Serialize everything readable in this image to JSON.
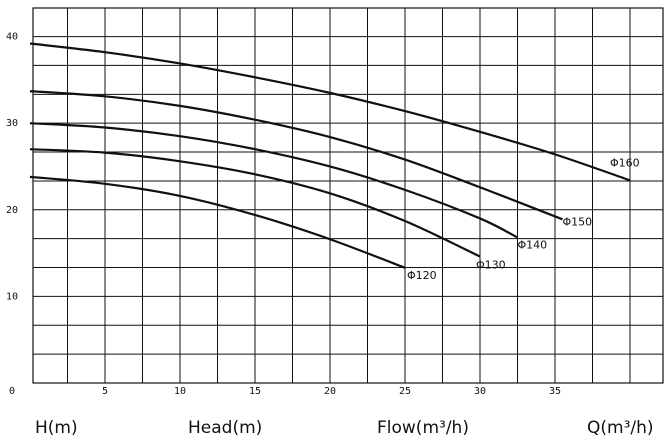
{
  "chart_data": {
    "type": "line",
    "footer_labels": [
      "H(m)",
      "Head(m)",
      "Flow(m³/h)",
      "Q(m³/h)"
    ],
    "xlim": [
      0,
      42.2
    ],
    "ylim": [
      0,
      43.3
    ],
    "xticks": [
      0,
      5,
      10,
      15,
      20,
      25,
      30,
      35
    ],
    "yticks": [
      10,
      20,
      30,
      40
    ],
    "xgrid": [
      2.5,
      5,
      7.5,
      10,
      12.5,
      15,
      17.5,
      20,
      22.5,
      25,
      27.5,
      30,
      32.5,
      35,
      37.5,
      40
    ],
    "ygrid": [
      3.33,
      6.67,
      10,
      13.33,
      16.67,
      20,
      23.33,
      26.67,
      30,
      33.33,
      36.67,
      40
    ],
    "grid": true,
    "color": "#111111",
    "series": [
      {
        "name": "Φ160",
        "x": [
          0,
          5,
          10,
          15,
          20,
          25,
          30,
          35,
          40
        ],
        "values": [
          39.2,
          38.2,
          36.9,
          35.3,
          33.5,
          31.4,
          29,
          26.4,
          23.4
        ]
      },
      {
        "name": "Φ150",
        "x": [
          0,
          5,
          10,
          15,
          20,
          25,
          30,
          35.5
        ],
        "values": [
          33.7,
          33.1,
          32,
          30.4,
          28.4,
          25.8,
          22.6,
          18.9
        ]
      },
      {
        "name": "Φ140",
        "x": [
          0,
          5,
          10,
          15,
          20,
          25,
          30,
          32.5
        ],
        "values": [
          30,
          29.5,
          28.5,
          27,
          25,
          22.3,
          19,
          16.8
        ]
      },
      {
        "name": "Φ130",
        "x": [
          0,
          5,
          10,
          15,
          20,
          25,
          30
        ],
        "values": [
          27,
          26.6,
          25.6,
          24.1,
          21.9,
          18.7,
          14.6
        ]
      },
      {
        "name": "Φ120",
        "x": [
          0,
          5,
          10,
          15,
          20,
          25
        ],
        "values": [
          23.8,
          23,
          21.6,
          19.4,
          16.6,
          13.3
        ]
      }
    ]
  }
}
